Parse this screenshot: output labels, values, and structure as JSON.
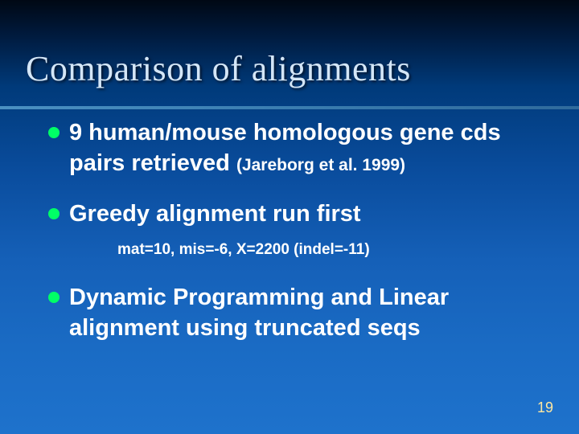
{
  "slide": {
    "title": "Comparison of alignments",
    "title_color": "#d4e6f7",
    "title_fontsize": 44,
    "underline_color": "#4a90c2",
    "background_gradient": [
      "#000814",
      "#001a3d",
      "#003a7a",
      "#0a4d9e",
      "#1560b8",
      "#1a6bc4",
      "#1e72cc"
    ],
    "bullet_color": "#00ff66",
    "bullet_fontsize": 29,
    "bullets": [
      {
        "main": "9 human/mouse homologous gene cds pairs retrieved ",
        "citation": "(Jareborg et al. 1999)",
        "sub": ""
      },
      {
        "main": "Greedy alignment run first",
        "citation": "",
        "sub": "mat=10, mis=-6, X=2200  (indel=-11)"
      },
      {
        "main": "Dynamic Programming and Linear alignment using truncated seqs",
        "citation": "",
        "sub": ""
      }
    ],
    "sub_fontsize": 19,
    "page_number": "19",
    "page_number_color": "#ffe8a0"
  }
}
